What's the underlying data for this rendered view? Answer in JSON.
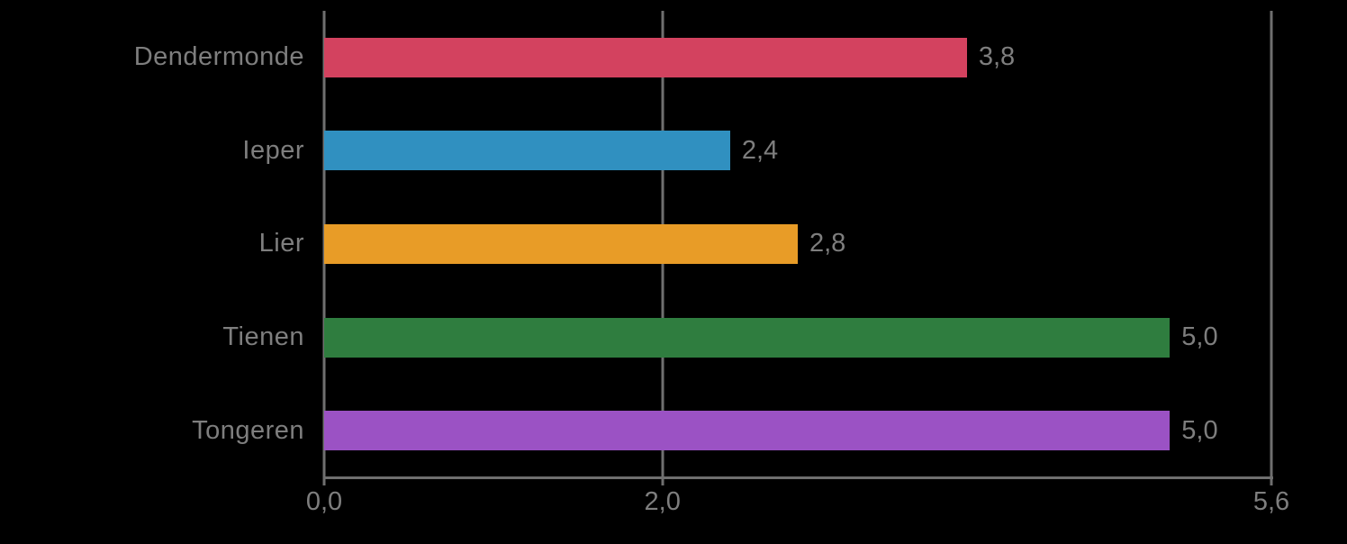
{
  "chart_data": {
    "type": "bar",
    "orientation": "horizontal",
    "title": "",
    "xlabel": "",
    "ylabel": "",
    "categories": [
      "Dendermonde",
      "Ieper",
      "Lier",
      "Tienen",
      "Tongeren"
    ],
    "values": [
      3.8,
      2.4,
      2.8,
      5.0,
      5.0
    ],
    "value_labels": [
      "3,8",
      "2,4",
      "2,8",
      "5,0",
      "5,0"
    ],
    "bar_colors": [
      "#d3425f",
      "#3090c0",
      "#e89c27",
      "#2f7d3f",
      "#9b52c4"
    ],
    "xlim": [
      0,
      5.6
    ],
    "x_ticks": [
      0.0,
      2.0,
      5.6
    ],
    "x_tick_labels": [
      "0,0",
      "2,0",
      "5,6"
    ],
    "grid": true,
    "legend": false,
    "background_color": "#000000",
    "axis_color": "#6f6f6f",
    "text_color": "#7e7e7e"
  }
}
